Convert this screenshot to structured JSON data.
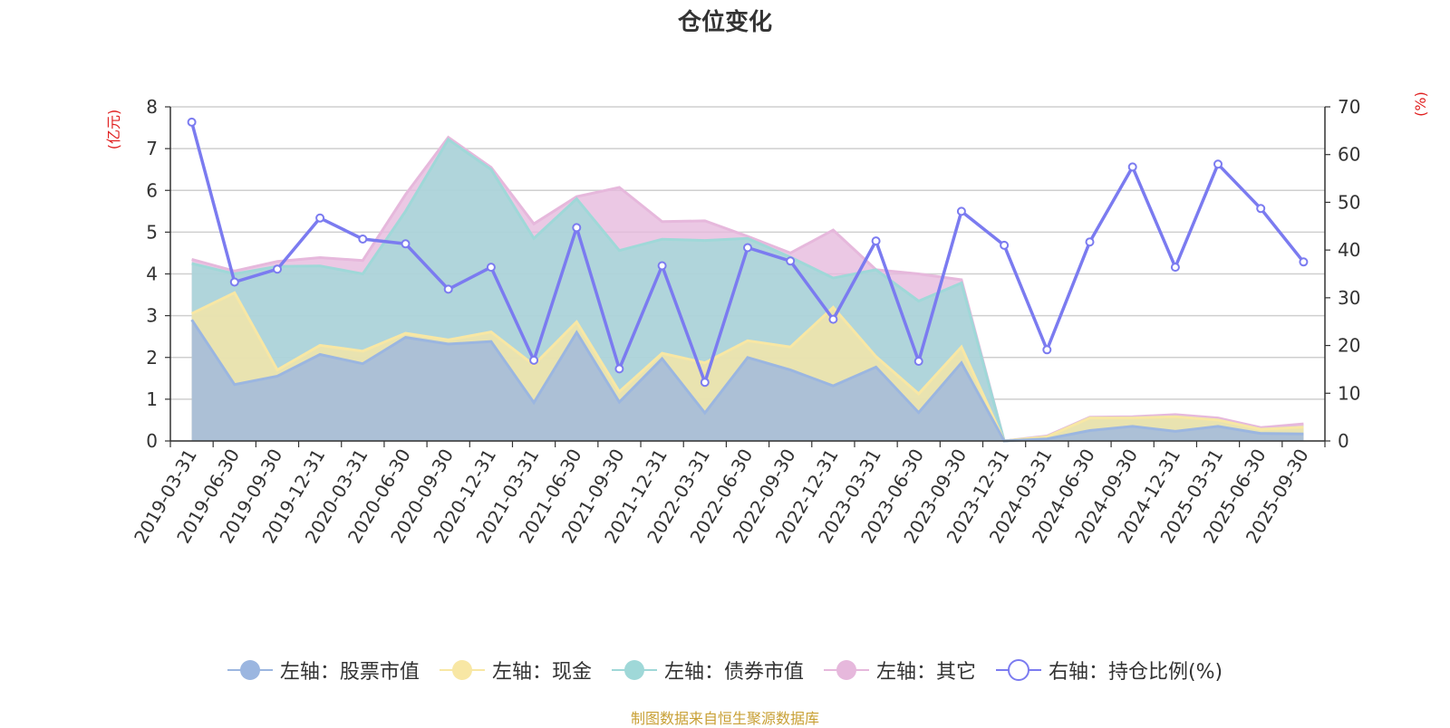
{
  "chart_data": {
    "type": "area",
    "title": "仓位变化",
    "left_axis_unit": "(亿元)",
    "right_axis_unit": "(%)",
    "left_ylim": [
      0,
      8
    ],
    "left_ticks": [
      "0",
      "1",
      "2",
      "3",
      "4",
      "5",
      "6",
      "7",
      "8"
    ],
    "right_ylim": [
      0,
      70
    ],
    "right_ticks": [
      "0",
      "10",
      "20",
      "30",
      "40",
      "50",
      "60",
      "70"
    ],
    "categories": [
      "2019-03-31",
      "2019-06-30",
      "2019-09-30",
      "2019-12-31",
      "2020-03-31",
      "2020-06-30",
      "2020-09-30",
      "2020-12-31",
      "2021-03-31",
      "2021-06-30",
      "2021-09-30",
      "2021-12-31",
      "2022-03-31",
      "2022-06-30",
      "2022-09-30",
      "2022-12-31",
      "2023-03-31",
      "2023-06-30",
      "2023-09-30",
      "2023-12-31",
      "2024-03-31",
      "2024-06-30",
      "2024-09-30",
      "2024-12-31",
      "2025-03-31",
      "2025-06-30",
      "2025-09-30"
    ],
    "series": [
      {
        "name": "左轴：股票市值",
        "axis": "left",
        "kind": "stacked-area",
        "color": "#9bb6e0",
        "values": [
          2.9,
          1.35,
          1.55,
          2.07,
          1.85,
          2.48,
          2.32,
          2.38,
          0.92,
          2.6,
          0.93,
          1.97,
          0.67,
          2.0,
          1.7,
          1.32,
          1.77,
          0.68,
          1.87,
          0.0,
          0.05,
          0.25,
          0.35,
          0.23,
          0.35,
          0.18,
          0.17
        ]
      },
      {
        "name": "左轴：现金",
        "axis": "left",
        "kind": "stacked-area",
        "color": "#f8e7a4",
        "values": [
          0.15,
          2.2,
          0.15,
          0.22,
          0.3,
          0.1,
          0.1,
          0.23,
          0.9,
          0.25,
          0.25,
          0.13,
          1.2,
          0.4,
          0.55,
          1.88,
          0.25,
          0.45,
          0.38,
          0.0,
          0.05,
          0.3,
          0.2,
          0.35,
          0.15,
          0.1,
          0.16
        ]
      },
      {
        "name": "左轴：债券市值",
        "axis": "left",
        "kind": "stacked-area",
        "color": "#9fd8d8",
        "values": [
          1.2,
          0.45,
          2.48,
          1.9,
          1.85,
          2.92,
          4.8,
          3.89,
          3.03,
          2.95,
          3.38,
          2.73,
          2.93,
          2.45,
          2.15,
          0.7,
          2.08,
          2.22,
          1.53,
          0.0,
          0.0,
          0.0,
          0.0,
          0.0,
          0.0,
          0.0,
          0.0
        ]
      },
      {
        "name": "左轴：其它",
        "axis": "left",
        "kind": "stacked-area",
        "color": "#e6b8dc",
        "values": [
          0.1,
          0.07,
          0.12,
          0.2,
          0.32,
          0.4,
          0.05,
          0.05,
          0.35,
          0.05,
          1.51,
          0.42,
          0.47,
          0.05,
          0.1,
          1.15,
          0.0,
          0.65,
          0.08,
          0.0,
          0.02,
          0.02,
          0.03,
          0.05,
          0.05,
          0.04,
          0.08
        ]
      },
      {
        "name": "右轴：持仓比例(%)",
        "axis": "right",
        "kind": "line",
        "color": "#7b7bf0",
        "values": [
          66.8,
          33.3,
          36.0,
          46.7,
          42.3,
          41.3,
          31.8,
          36.4,
          16.9,
          44.7,
          15.1,
          36.7,
          12.3,
          40.5,
          37.7,
          25.5,
          41.9,
          16.7,
          48.1,
          41.0,
          19.1,
          41.7,
          57.4,
          36.4,
          58.0,
          48.7,
          37.5
        ]
      }
    ]
  },
  "footer": "制图数据来自恒生聚源数据库"
}
